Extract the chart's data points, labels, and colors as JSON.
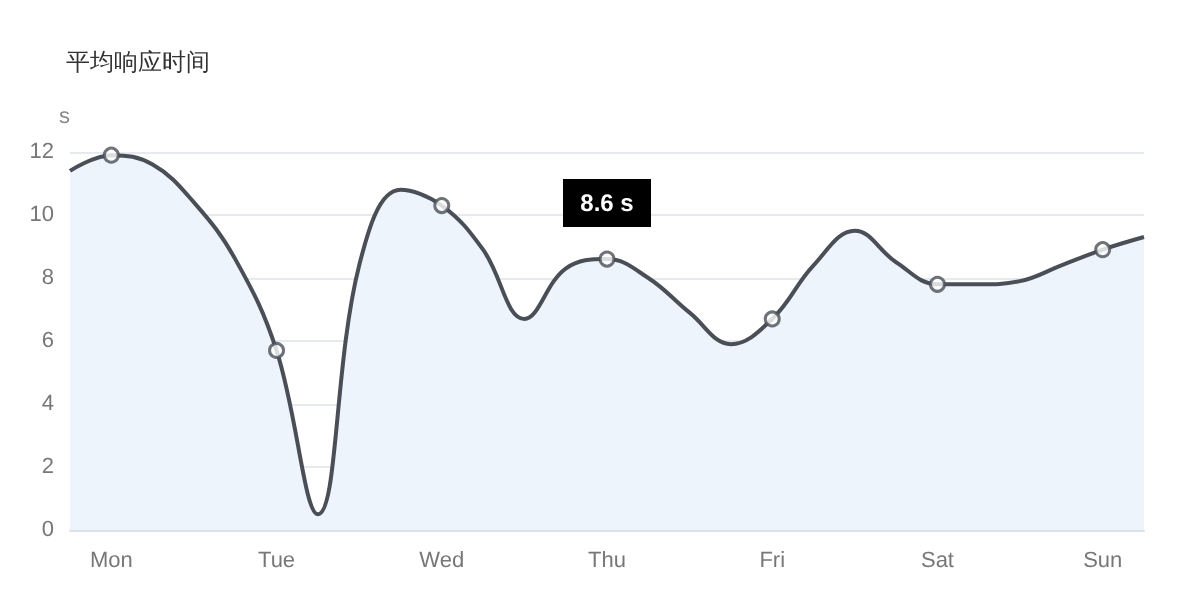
{
  "chart_data": {
    "type": "area",
    "title": "平均响应时间",
    "ylabel": "s",
    "categories": [
      null,
      "Mon",
      null,
      null,
      null,
      "Tue",
      null,
      null,
      null,
      "Wed",
      null,
      null,
      null,
      "Thu",
      null,
      null,
      null,
      "Fri",
      null,
      null,
      null,
      "Sat",
      null,
      null,
      null,
      "Sun",
      null
    ],
    "series": [
      {
        "color": "#4a4f57",
        "marker": "none",
        "values": [
          11.4,
          11.9,
          11.6,
          10.4,
          8.6,
          5.7,
          0.5,
          8.4,
          10.8,
          10.3,
          8.9,
          6.7,
          8.3,
          8.6,
          8.0,
          6.9,
          5.9,
          6.7,
          8.4,
          9.5,
          8.5,
          7.8,
          7.8,
          7.9,
          8.4,
          8.9,
          9.3
        ]
      },
      {
        "type": "scatter",
        "color": "#4a4f57",
        "marker": "circle",
        "x": [
          "Mon",
          "Tue",
          "Wed",
          "Thu",
          "Fri",
          "Sat",
          "Sun"
        ],
        "values": [
          11.9,
          5.7,
          10.3,
          8.6,
          6.7,
          7.8,
          8.9
        ]
      }
    ],
    "ylim": [
      0,
      12
    ],
    "yticks": [
      0,
      2,
      4,
      6,
      8,
      10,
      12
    ],
    "grid": "y",
    "line_style": "solid",
    "annotations": [
      {
        "text": "8.6 s",
        "x": "Thu",
        "y": 8.6
      }
    ]
  }
}
